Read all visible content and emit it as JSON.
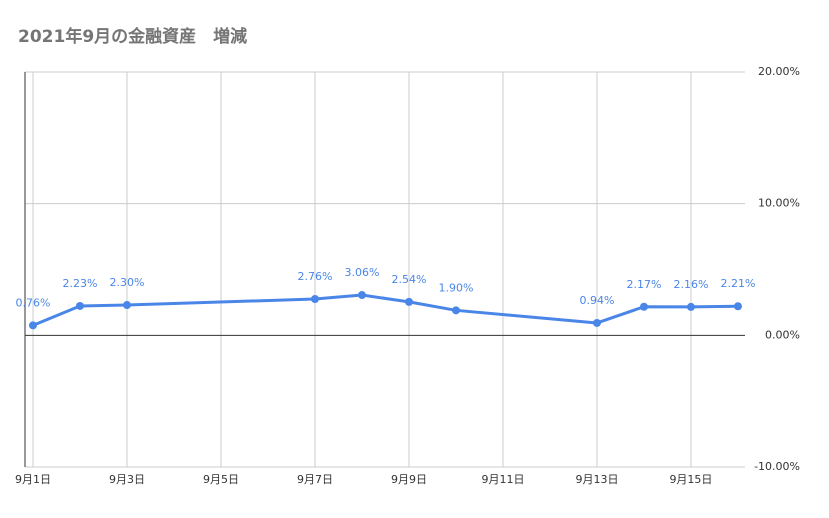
{
  "chart_data": {
    "type": "line",
    "title": "2021年9月の金融資産　増減",
    "x": [
      1,
      2,
      3,
      7,
      8,
      9,
      10,
      13,
      14,
      15,
      16
    ],
    "series": [
      {
        "color": "#4a86e8",
        "values": [
          0.76,
          2.23,
          2.3,
          2.76,
          3.06,
          2.54,
          1.9,
          0.94,
          2.17,
          2.16,
          2.21
        ],
        "value_labels": [
          "0.76%",
          "2.23%",
          "2.30%",
          "2.76%",
          "3.06%",
          "2.54%",
          "1.90%",
          "0.94%",
          "2.17%",
          "2.16%",
          "2.21%"
        ]
      }
    ],
    "xlim": [
      0.83,
      16.15
    ],
    "xticks": [
      {
        "value": 1,
        "label": "9月1日"
      },
      {
        "value": 3,
        "label": "9月3日"
      },
      {
        "value": 5,
        "label": "9月5日"
      },
      {
        "value": 7,
        "label": "9月7日"
      },
      {
        "value": 9,
        "label": "9月9日"
      },
      {
        "value": 11,
        "label": "9月11日"
      },
      {
        "value": 13,
        "label": "9月13日"
      },
      {
        "value": 15,
        "label": "9月15日"
      }
    ],
    "ylim": [
      -10,
      20
    ],
    "yticks": [
      {
        "value": -10,
        "label": "-10.00%"
      },
      {
        "value": 0,
        "label": "0.00%"
      },
      {
        "value": 10,
        "label": "10.00%"
      },
      {
        "value": 20,
        "label": "20.00%"
      }
    ],
    "y_axis_side": "right",
    "grid": true
  }
}
